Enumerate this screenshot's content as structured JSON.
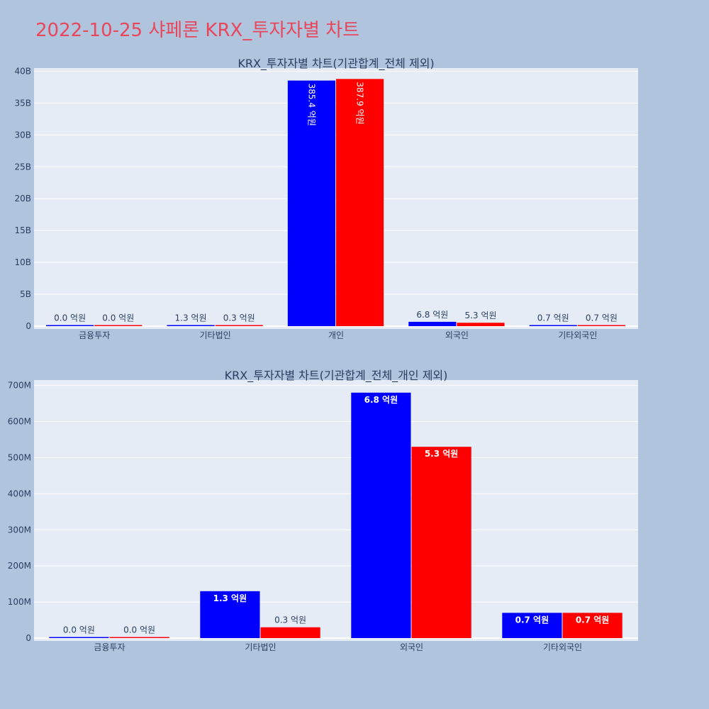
{
  "title": "2022-10-25 샤페론 KRX_투자자별 차트",
  "colors": {
    "series_a": "#0000ff",
    "series_b": "#ff0000",
    "plot_bg": "#e5ecf6",
    "page_bg": "#b0c4de",
    "title": "#e8475b"
  },
  "chart_data": [
    {
      "type": "bar",
      "title": "KRX_투자자별 차트(기관합계_전체 제외)",
      "categories": [
        "금융투자",
        "기타법인",
        "개인",
        "외국인",
        "기타외국인"
      ],
      "series": [
        {
          "values": [
            0.0,
            130000000,
            38540000000,
            680000000,
            70000000
          ],
          "labels": [
            "0.0 억원",
            "1.3 억원",
            "385.4 억원",
            "6.8 억원",
            "0.7 억원"
          ]
        },
        {
          "values": [
            0.0,
            30000000,
            38790000000,
            530000000,
            70000000
          ],
          "labels": [
            "0.0 억원",
            "0.3 억원",
            "387.9 억원",
            "5.3 억원",
            "0.7 억원"
          ]
        }
      ],
      "ylim": [
        0,
        40500000000
      ],
      "yticks": [
        0,
        5000000000,
        10000000000,
        15000000000,
        20000000000,
        25000000000,
        30000000000,
        35000000000,
        40000000000
      ],
      "ytick_labels": [
        "0",
        "5B",
        "10B",
        "15B",
        "20B",
        "25B",
        "30B",
        "35B",
        "40B"
      ],
      "grid": true
    },
    {
      "type": "bar",
      "title": "KRX_투자자별 차트(기관합계_전체_개인 제외)",
      "categories": [
        "금융투자",
        "기타법인",
        "외국인",
        "기타외국인"
      ],
      "series": [
        {
          "values": [
            0.0,
            130000000,
            680000000,
            70000000
          ],
          "labels": [
            "0.0 억원",
            "1.3 억원",
            "6.8 억원",
            "0.7 억원"
          ]
        },
        {
          "values": [
            0.0,
            30000000,
            530000000,
            70000000
          ],
          "labels": [
            "0.0 억원",
            "0.3 억원",
            "5.3 억원",
            "0.7 억원"
          ]
        }
      ],
      "ylim": [
        0,
        715000000
      ],
      "yticks": [
        0,
        100000000,
        200000000,
        300000000,
        400000000,
        500000000,
        600000000,
        700000000
      ],
      "ytick_labels": [
        "0",
        "100M",
        "200M",
        "300M",
        "400M",
        "500M",
        "600M",
        "700M"
      ],
      "grid": true
    }
  ]
}
